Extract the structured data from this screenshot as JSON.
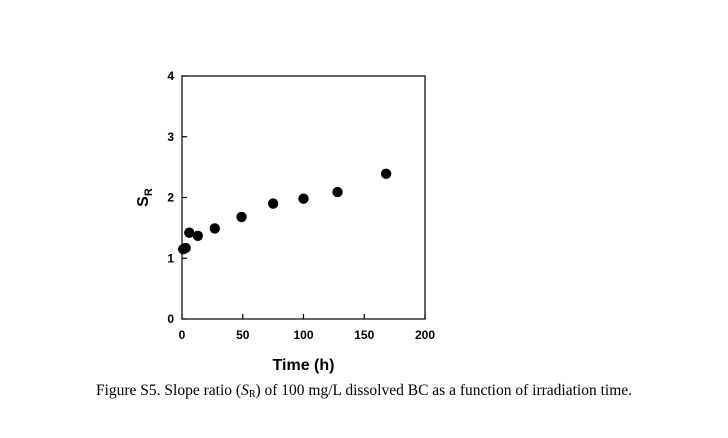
{
  "chart_data": {
    "type": "scatter",
    "title": "",
    "xlabel": "Time (h)",
    "ylabel_main": "S",
    "ylabel_sub": "R",
    "xlim": [
      0,
      200
    ],
    "ylim": [
      0,
      4
    ],
    "xticks": [
      0,
      50,
      100,
      150,
      200
    ],
    "yticks": [
      0,
      1,
      2,
      3,
      4
    ],
    "grid": false,
    "marker_color": "#000000",
    "series": [
      {
        "name": "SR",
        "x": [
          1,
          3,
          6,
          13,
          27,
          49,
          75,
          100,
          128,
          168
        ],
        "y": [
          1.15,
          1.17,
          1.42,
          1.37,
          1.49,
          1.68,
          1.9,
          1.98,
          2.09,
          2.39
        ]
      }
    ]
  },
  "caption": {
    "prefix": "Figure S5. Slope ratio (",
    "symbol": "S",
    "symbol_sub": "R",
    "suffix": ") of 100 mg/L dissolved BC as a function of irradiation time."
  }
}
